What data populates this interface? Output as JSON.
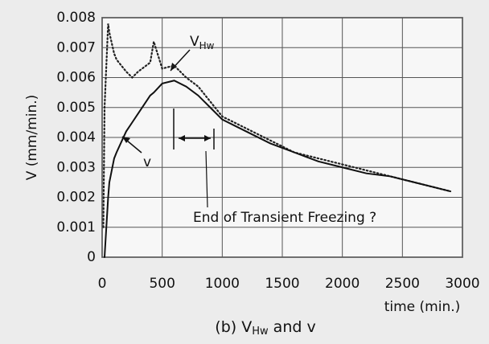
{
  "chart_data": {
    "type": "line",
    "title": {
      "text": "(b) V",
      "sub": "Hw",
      "rest": " and v"
    },
    "x_label": "time (min.)",
    "y_label": "V (mm/min.)",
    "x": [
      10,
      20,
      50,
      60,
      100,
      120,
      200,
      250,
      300,
      400,
      430,
      500,
      600,
      700,
      800,
      900,
      1000,
      1200,
      1400,
      1600,
      1800,
      2000,
      2200,
      2400,
      2600,
      2800,
      2900
    ],
    "series": [
      {
        "color": "#222222",
        "style": "dotted",
        "values": [
          0.001,
          0.005,
          0.0078,
          0.0075,
          0.0068,
          0.0066,
          0.0062,
          0.006,
          0.0062,
          0.0065,
          0.0072,
          0.0063,
          0.0064,
          0.006,
          0.0057,
          0.0052,
          0.0047,
          0.0043,
          0.0039,
          0.0035,
          0.0033,
          0.0031,
          0.0029,
          0.0027,
          0.0025,
          0.0023,
          0.0022
        ]
      },
      {
        "color": "#111111",
        "style": "solid",
        "values": [
          null,
          0,
          0.002,
          0.0025,
          0.0033,
          0.0035,
          0.0042,
          0.0045,
          0.0048,
          0.0054,
          0.0055,
          0.0058,
          0.0059,
          0.0057,
          0.0054,
          0.005,
          0.0046,
          0.0042,
          0.0038,
          0.0035,
          0.0032,
          0.003,
          0.0028,
          0.0027,
          0.0025,
          0.0023,
          0.0022
        ]
      }
    ],
    "xlim": [
      0,
      3000
    ],
    "xticks": [
      0,
      500,
      1000,
      1500,
      2000,
      2500,
      3000
    ],
    "ylim": [
      0,
      0.008
    ],
    "yticks": [
      0,
      0.001,
      0.002,
      0.003,
      0.004,
      0.005,
      0.006,
      0.007,
      0.008
    ],
    "grid": true,
    "annotations": [
      {
        "text": "V",
        "sub": "Hw"
      },
      {
        "text": "v"
      },
      {
        "text": "End of Transient Freezing ?"
      }
    ]
  }
}
